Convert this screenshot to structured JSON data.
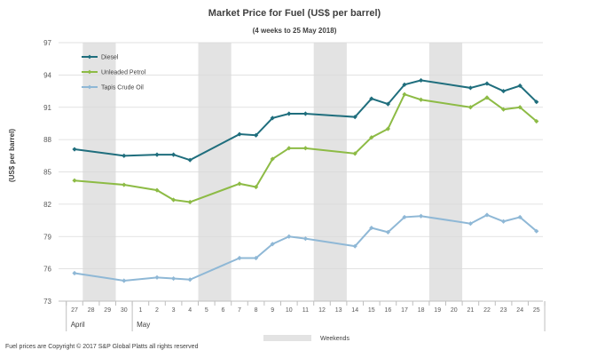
{
  "chart_data": {
    "type": "line",
    "title": "Market Price for Fuel (US$ per barrel)",
    "subtitle": "(4 weeks to 25 May 2018)",
    "ylabel": "(US$ per barrel)",
    "ylim": [
      73,
      97
    ],
    "yticks": [
      73,
      76,
      79,
      82,
      85,
      88,
      91,
      94,
      97
    ],
    "x_labels": [
      "27",
      "28",
      "29",
      "30",
      "1",
      "2",
      "3",
      "4",
      "5",
      "6",
      "7",
      "8",
      "9",
      "10",
      "11",
      "12",
      "13",
      "14",
      "15",
      "16",
      "17",
      "18",
      "19",
      "20",
      "21",
      "22",
      "23",
      "24",
      "25"
    ],
    "month_labels": [
      {
        "label": "April",
        "start_index": 0,
        "end_index": 3
      },
      {
        "label": "May",
        "start_index": 4,
        "end_index": 28
      }
    ],
    "weekend_indices": [
      [
        1,
        2
      ],
      [
        8,
        9
      ],
      [
        15,
        16
      ],
      [
        22,
        23
      ]
    ],
    "weekend_label": "Weekends",
    "series": [
      {
        "name": "Diesel",
        "color": "#1f6e7d",
        "points": [
          [
            0,
            87.1
          ],
          [
            3,
            86.5
          ],
          [
            5,
            86.6
          ],
          [
            6,
            86.6
          ],
          [
            7,
            86.1
          ],
          [
            10,
            88.5
          ],
          [
            11,
            88.4
          ],
          [
            12,
            90.0
          ],
          [
            13,
            90.4
          ],
          [
            14,
            90.4
          ],
          [
            17,
            90.1
          ],
          [
            18,
            91.8
          ],
          [
            19,
            91.3
          ],
          [
            20,
            93.1
          ],
          [
            21,
            93.5
          ],
          [
            24,
            92.8
          ],
          [
            25,
            93.2
          ],
          [
            26,
            92.5
          ],
          [
            27,
            93.0
          ],
          [
            28,
            91.5
          ]
        ]
      },
      {
        "name": "Unleaded Petrol",
        "color": "#8dbb45",
        "points": [
          [
            0,
            84.2
          ],
          [
            3,
            83.8
          ],
          [
            5,
            83.3
          ],
          [
            6,
            82.4
          ],
          [
            7,
            82.2
          ],
          [
            10,
            83.9
          ],
          [
            11,
            83.6
          ],
          [
            12,
            86.2
          ],
          [
            13,
            87.2
          ],
          [
            14,
            87.2
          ],
          [
            17,
            86.7
          ],
          [
            18,
            88.2
          ],
          [
            19,
            89.0
          ],
          [
            20,
            92.2
          ],
          [
            21,
            91.7
          ],
          [
            24,
            91.0
          ],
          [
            25,
            91.9
          ],
          [
            26,
            90.8
          ],
          [
            27,
            91.0
          ],
          [
            28,
            89.7
          ]
        ]
      },
      {
        "name": "Tapis Crude Oil",
        "color": "#8fb8d6",
        "points": [
          [
            0,
            75.6
          ],
          [
            3,
            74.9
          ],
          [
            5,
            75.2
          ],
          [
            6,
            75.1
          ],
          [
            7,
            75.0
          ],
          [
            10,
            77.0
          ],
          [
            11,
            77.0
          ],
          [
            12,
            78.3
          ],
          [
            13,
            79.0
          ],
          [
            14,
            78.8
          ],
          [
            17,
            78.1
          ],
          [
            18,
            79.8
          ],
          [
            19,
            79.4
          ],
          [
            20,
            80.8
          ],
          [
            21,
            80.9
          ],
          [
            24,
            80.2
          ],
          [
            25,
            81.0
          ],
          [
            26,
            80.4
          ],
          [
            27,
            80.8
          ],
          [
            28,
            79.5
          ]
        ]
      }
    ],
    "legend_placement": "top-left",
    "footer": "Fuel prices are Copyright  © 2017 S&P Global Platts all rights reserved"
  }
}
